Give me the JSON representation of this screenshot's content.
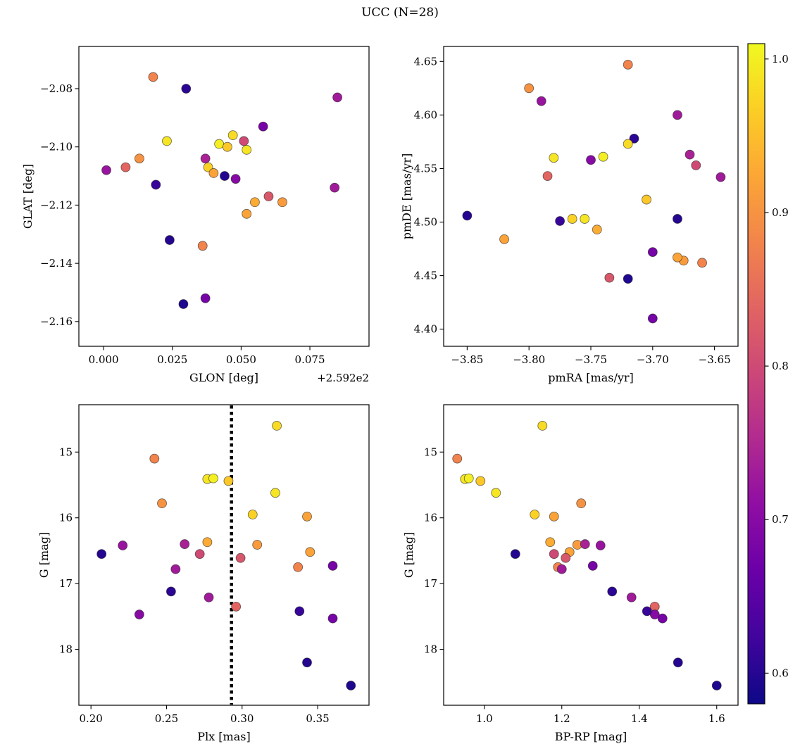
{
  "title": "UCC (N=28)",
  "chart_data": {
    "type": "scatter",
    "n_stars": 28,
    "color_scale": {
      "cmap": "plasma",
      "vmin": 0.58,
      "vmax": 1.01,
      "tick_values": [
        0.6,
        0.7,
        0.8,
        0.9,
        1.0
      ],
      "tick_labels": [
        "0.6",
        "0.7",
        "0.8",
        "0.9",
        "1.0"
      ],
      "position": "right"
    },
    "panels": [
      {
        "key": "glon-glat",
        "xlabel": "GLON [deg]",
        "ylabel": "GLAT [deg]",
        "x_offset_text": "+2.592e2",
        "xfield": "glon",
        "yfield": "glat",
        "xlim": [
          -0.009,
          0.0965
        ],
        "ylim_bottom_top": [
          -2.1685,
          -2.0655
        ],
        "xticks": {
          "values": [
            0.0,
            0.025,
            0.05,
            0.075
          ],
          "labels": [
            "0.000",
            "0.025",
            "0.050",
            "0.075"
          ]
        },
        "yticks": {
          "values": [
            -2.08,
            -2.1,
            -2.12,
            -2.14,
            -2.16
          ],
          "labels": [
            "−2.08",
            "−2.10",
            "−2.12",
            "−2.14",
            "−2.16"
          ]
        }
      },
      {
        "key": "pmra-pmde",
        "xlabel": "pmRA [mas/yr]",
        "ylabel": "pmDE [mas/yr]",
        "xfield": "pmra",
        "yfield": "pmde",
        "xlim": [
          -3.869,
          -3.631
        ],
        "ylim_bottom_top": [
          4.384,
          4.664
        ],
        "xticks": {
          "values": [
            -3.85,
            -3.8,
            -3.75,
            -3.7,
            -3.65
          ],
          "labels": [
            "−3.85",
            "−3.80",
            "−3.75",
            "−3.70",
            "−3.65"
          ]
        },
        "yticks": {
          "values": [
            4.4,
            4.45,
            4.5,
            4.55,
            4.6,
            4.65
          ],
          "labels": [
            "4.40",
            "4.45",
            "4.50",
            "4.55",
            "4.60",
            "4.65"
          ]
        }
      },
      {
        "key": "plx-g",
        "xlabel": "Plx [mas]",
        "ylabel": "G [mag]",
        "xfield": "plx",
        "yfield": "g",
        "xlim": [
          0.192,
          0.384
        ],
        "ylim_bottom_top": [
          18.85,
          14.28
        ],
        "xticks": {
          "values": [
            0.2,
            0.25,
            0.3,
            0.35
          ],
          "labels": [
            "0.20",
            "0.25",
            "0.30",
            "0.35"
          ]
        },
        "yticks": {
          "values": [
            15,
            16,
            17,
            18
          ],
          "labels": [
            "15",
            "16",
            "17",
            "18"
          ]
        },
        "vline": {
          "x": 0.293,
          "style": "dotted",
          "color": "#000000"
        }
      },
      {
        "key": "bprp-g",
        "xlabel": "BP-RP [mag]",
        "ylabel": "G [mag]",
        "xfield": "bprp",
        "yfield": "g",
        "xlim": [
          0.895,
          1.655
        ],
        "ylim_bottom_top": [
          18.85,
          14.28
        ],
        "xticks": {
          "values": [
            1.0,
            1.2,
            1.4,
            1.6
          ],
          "labels": [
            "1.0",
            "1.2",
            "1.4",
            "1.6"
          ]
        },
        "yticks": {
          "values": [
            15,
            16,
            17,
            18
          ],
          "labels": [
            "15",
            "16",
            "17",
            "18"
          ]
        }
      }
    ],
    "stars": [
      {
        "glon": 0.018,
        "glat": -2.076,
        "pmra": -3.72,
        "pmde": 4.647,
        "plx": 0.242,
        "g": 15.1,
        "bprp": 0.93,
        "prob": 0.88
      },
      {
        "glon": 0.03,
        "glat": -2.08,
        "pmra": -3.715,
        "pmde": 4.578,
        "plx": 0.253,
        "g": 17.12,
        "bprp": 1.33,
        "prob": 0.605
      },
      {
        "glon": 0.085,
        "glat": -2.083,
        "pmra": -3.68,
        "pmde": 4.6,
        "plx": 0.278,
        "g": 17.21,
        "bprp": 1.38,
        "prob": 0.73
      },
      {
        "glon": 0.058,
        "glat": -2.093,
        "pmra": -3.7,
        "pmde": 4.41,
        "plx": 0.36,
        "g": 17.53,
        "bprp": 1.46,
        "prob": 0.68
      },
      {
        "glon": 0.023,
        "glat": -2.098,
        "pmra": -3.78,
        "pmde": 4.56,
        "plx": 0.277,
        "g": 15.41,
        "bprp": 0.95,
        "prob": 0.99
      },
      {
        "glon": 0.047,
        "glat": -2.096,
        "pmra": -3.72,
        "pmde": 4.573,
        "plx": 0.323,
        "g": 14.6,
        "bprp": 1.15,
        "prob": 0.98
      },
      {
        "glon": 0.042,
        "glat": -2.099,
        "pmra": -3.74,
        "pmde": 4.561,
        "plx": 0.281,
        "g": 15.4,
        "bprp": 0.96,
        "prob": 1.0
      },
      {
        "glon": 0.052,
        "glat": -2.101,
        "pmra": -3.755,
        "pmde": 4.503,
        "plx": 0.322,
        "g": 15.62,
        "bprp": 1.03,
        "prob": 0.99
      },
      {
        "glon": 0.038,
        "glat": -2.107,
        "pmra": -3.765,
        "pmde": 4.503,
        "plx": 0.307,
        "g": 15.95,
        "bprp": 1.13,
        "prob": 0.97
      },
      {
        "glon": 0.045,
        "glat": -2.1,
        "pmra": -3.705,
        "pmde": 4.521,
        "plx": 0.291,
        "g": 15.44,
        "bprp": 0.99,
        "prob": 0.96
      },
      {
        "glon": 0.013,
        "glat": -2.104,
        "pmra": -3.8,
        "pmde": 4.625,
        "plx": 0.247,
        "g": 15.78,
        "bprp": 1.25,
        "prob": 0.9
      },
      {
        "glon": 0.04,
        "glat": -2.109,
        "pmra": -3.82,
        "pmde": 4.484,
        "plx": 0.343,
        "g": 15.98,
        "bprp": 1.18,
        "prob": 0.92
      },
      {
        "glon": 0.055,
        "glat": -2.119,
        "pmra": -3.745,
        "pmde": 4.493,
        "plx": 0.277,
        "g": 16.37,
        "bprp": 1.17,
        "prob": 0.93
      },
      {
        "glon": 0.065,
        "glat": -2.119,
        "pmra": -3.675,
        "pmde": 4.464,
        "plx": 0.31,
        "g": 16.41,
        "bprp": 1.24,
        "prob": 0.91
      },
      {
        "glon": 0.052,
        "glat": -2.123,
        "pmra": -3.68,
        "pmde": 4.467,
        "plx": 0.345,
        "g": 16.52,
        "bprp": 1.22,
        "prob": 0.92
      },
      {
        "glon": 0.036,
        "glat": -2.134,
        "pmra": -3.66,
        "pmde": 4.462,
        "plx": 0.337,
        "g": 16.75,
        "bprp": 1.19,
        "prob": 0.88
      },
      {
        "glon": 0.008,
        "glat": -2.107,
        "pmra": -3.785,
        "pmde": 4.543,
        "plx": 0.296,
        "g": 17.35,
        "bprp": 1.44,
        "prob": 0.84
      },
      {
        "glon": 0.051,
        "glat": -2.098,
        "pmra": -3.665,
        "pmde": 4.553,
        "plx": 0.272,
        "g": 16.55,
        "bprp": 1.18,
        "prob": 0.8
      },
      {
        "glon": 0.06,
        "glat": -2.117,
        "pmra": -3.735,
        "pmde": 4.448,
        "plx": 0.299,
        "g": 16.61,
        "bprp": 1.21,
        "prob": 0.82
      },
      {
        "glon": 0.001,
        "glat": -2.108,
        "pmra": -3.79,
        "pmde": 4.613,
        "plx": 0.221,
        "g": 16.42,
        "bprp": 1.3,
        "prob": 0.72
      },
      {
        "glon": 0.037,
        "glat": -2.104,
        "pmra": -3.67,
        "pmde": 4.563,
        "plx": 0.262,
        "g": 16.4,
        "bprp": 1.26,
        "prob": 0.74
      },
      {
        "glon": 0.084,
        "glat": -2.114,
        "pmra": -3.645,
        "pmde": 4.542,
        "plx": 0.256,
        "g": 16.78,
        "bprp": 1.2,
        "prob": 0.73
      },
      {
        "glon": 0.048,
        "glat": -2.111,
        "pmra": -3.75,
        "pmde": 4.558,
        "plx": 0.232,
        "g": 17.47,
        "bprp": 1.44,
        "prob": 0.7
      },
      {
        "glon": 0.037,
        "glat": -2.152,
        "pmra": -3.7,
        "pmde": 4.472,
        "plx": 0.36,
        "g": 16.73,
        "bprp": 1.28,
        "prob": 0.68
      },
      {
        "glon": 0.044,
        "glat": -2.11,
        "pmra": -3.85,
        "pmde": 4.506,
        "plx": 0.207,
        "g": 16.55,
        "bprp": 1.08,
        "prob": 0.6
      },
      {
        "glon": 0.019,
        "glat": -2.113,
        "pmra": -3.775,
        "pmde": 4.501,
        "plx": 0.338,
        "g": 17.42,
        "bprp": 1.42,
        "prob": 0.615
      },
      {
        "glon": 0.024,
        "glat": -2.132,
        "pmra": -3.68,
        "pmde": 4.503,
        "plx": 0.343,
        "g": 18.2,
        "bprp": 1.5,
        "prob": 0.6
      },
      {
        "glon": 0.029,
        "glat": -2.154,
        "pmra": -3.72,
        "pmde": 4.447,
        "plx": 0.372,
        "g": 18.55,
        "bprp": 1.6,
        "prob": 0.595
      }
    ]
  }
}
